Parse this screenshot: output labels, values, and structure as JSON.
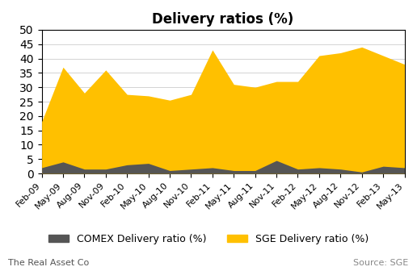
{
  "chart_data": {
    "type": "area",
    "title": "Delivery ratios (%)",
    "categories": [
      "Feb-09",
      "May-09",
      "Aug-09",
      "Nov-09",
      "Feb-10",
      "May-10",
      "Aug-10",
      "Nov-10",
      "Feb-11",
      "May-11",
      "Aug-11",
      "Nov-11",
      "Feb-12",
      "May-12",
      "Aug-12",
      "Nov-12",
      "Feb-13",
      "May-13"
    ],
    "series": [
      {
        "name": "COMEX Delivery ratio (%)",
        "color": "#555555",
        "values": [
          2.0,
          4.0,
          1.5,
          1.5,
          3.0,
          3.5,
          1.0,
          1.5,
          2.0,
          1.0,
          1.0,
          4.5,
          1.5,
          2.0,
          1.5,
          0.5,
          2.5,
          2.0
        ]
      },
      {
        "name": "SGE Delivery ratio (%)",
        "color": "#FFC000",
        "values": [
          18.0,
          37.0,
          28.0,
          36.0,
          27.5,
          27.0,
          25.5,
          27.5,
          43.0,
          31.0,
          30.0,
          32.0,
          32.0,
          41.0,
          42.0,
          44.0,
          41.0,
          38.0
        ]
      }
    ],
    "stacked": false,
    "ylim": [
      0,
      50
    ],
    "yticks": [
      0,
      5,
      10,
      15,
      20,
      25,
      30,
      35,
      40,
      45,
      50
    ],
    "grid": true,
    "legend": "lower center",
    "annotations": [
      "The Real Asset Co",
      "Source: SGE"
    ]
  }
}
